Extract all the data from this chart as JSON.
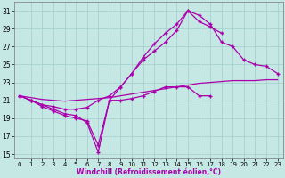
{
  "background_color": "#c5e8e5",
  "grid_color": "#a0cccc",
  "line_color": "#aa00aa",
  "xlabel": "Windchill (Refroidissement éolien,°C)",
  "xmin": -0.5,
  "xmax": 23.5,
  "ymin": 14.5,
  "ymax": 32.0,
  "yticks": [
    15,
    17,
    19,
    21,
    23,
    25,
    27,
    29,
    31
  ],
  "xticks": [
    0,
    1,
    2,
    3,
    4,
    5,
    6,
    7,
    8,
    9,
    10,
    11,
    12,
    13,
    14,
    15,
    16,
    17,
    18,
    19,
    20,
    21,
    22,
    23
  ],
  "lines": [
    {
      "x": [
        0,
        1,
        2,
        3,
        4,
        5,
        6,
        7,
        8,
        9,
        10,
        11,
        12,
        13,
        14,
        15,
        16,
        17,
        18,
        19,
        20,
        21,
        22,
        23
      ],
      "y": [
        21.5,
        21.3,
        21.1,
        21.0,
        20.9,
        21.0,
        21.1,
        21.2,
        21.3,
        21.5,
        21.7,
        21.9,
        22.1,
        22.3,
        22.5,
        22.7,
        22.9,
        23.0,
        23.1,
        23.2,
        23.2,
        23.2,
        23.3,
        23.3
      ],
      "markers": false
    },
    {
      "x": [
        0,
        1,
        2,
        3,
        4,
        5,
        6,
        7,
        8,
        9,
        10,
        11,
        12,
        13,
        14,
        15,
        16,
        17,
        18,
        19,
        20,
        21,
        22,
        23
      ],
      "y": [
        21.5,
        21.0,
        20.5,
        20.3,
        20.0,
        20.0,
        20.2,
        21.0,
        21.5,
        22.5,
        24.0,
        25.5,
        26.5,
        27.5,
        28.8,
        31.0,
        30.5,
        29.5,
        27.5,
        27.0,
        25.5,
        25.0,
        24.8,
        24.0
      ],
      "markers": true
    },
    {
      "x": [
        0,
        1,
        2,
        3,
        4,
        5,
        6,
        7,
        8,
        9,
        10,
        11,
        12,
        13,
        14,
        15,
        16,
        17
      ],
      "y": [
        21.5,
        21.0,
        20.5,
        20.0,
        19.5,
        19.3,
        18.5,
        15.2,
        21.0,
        21.0,
        21.2,
        21.5,
        22.0,
        22.5,
        22.5,
        22.5,
        21.5,
        21.5
      ],
      "markers": true
    },
    {
      "x": [
        0,
        1,
        2,
        3,
        4,
        5,
        6,
        7,
        8,
        9,
        10,
        11,
        12,
        13,
        14,
        15,
        16,
        17,
        18
      ],
      "y": [
        21.5,
        21.0,
        20.3,
        19.8,
        19.3,
        19.0,
        18.7,
        16.0,
        21.0,
        22.5,
        24.0,
        25.8,
        27.3,
        28.5,
        29.5,
        31.0,
        29.8,
        29.2,
        28.5
      ],
      "markers": true
    }
  ]
}
